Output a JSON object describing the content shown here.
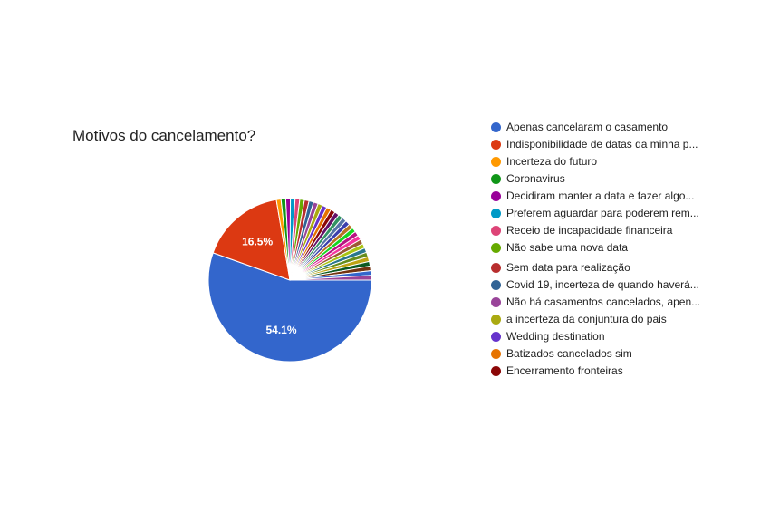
{
  "chart_data": {
    "type": "pie",
    "title": "Motivos do cancelamento?",
    "legend_position": "right",
    "slices": [
      {
        "label": "Apenas cancelaram o casamento",
        "value": 54.1,
        "color": "#3366cc",
        "show_label": true
      },
      {
        "label": "Indisponibilidade de datas da minha p...",
        "value": 16.5,
        "color": "#dc3912",
        "show_label": true
      },
      {
        "label": "Incerteza do futuro",
        "value": 0.9,
        "color": "#ff9900"
      },
      {
        "label": "Coronavirus",
        "value": 0.9,
        "color": "#109618"
      },
      {
        "label": "Decidiram manter a data e fazer algo...",
        "value": 0.9,
        "color": "#990099"
      },
      {
        "label": "Preferem aguardar para poderem rem...",
        "value": 0.9,
        "color": "#0099c6"
      },
      {
        "label": "Receio de incapacidade financeira",
        "value": 0.9,
        "color": "#dd4477"
      },
      {
        "label": "Não sabe uma nova data",
        "value": 0.9,
        "color": "#66aa00"
      },
      {
        "label": "Sem data para realização",
        "value": 0.9,
        "color": "#b82e2e"
      },
      {
        "label": "Covid 19, incerteza de quando haverá...",
        "value": 0.9,
        "color": "#316395"
      },
      {
        "label": "Não há casamentos cancelados, apen...",
        "value": 0.9,
        "color": "#994499"
      },
      {
        "label": "a incerteza da conjuntura do pais",
        "value": 0.9,
        "color": "#aaaa11"
      },
      {
        "label": "Wedding destination",
        "value": 0.9,
        "color": "#6633cc"
      },
      {
        "label": "Batizados cancelados sim",
        "value": 0.9,
        "color": "#e67300"
      },
      {
        "label": "Encerramento fronteiras",
        "value": 0.9,
        "color": "#8b0707"
      },
      {
        "label": "",
        "value": 0.9,
        "color": "#651067"
      },
      {
        "label": "",
        "value": 0.9,
        "color": "#329262"
      },
      {
        "label": "",
        "value": 0.9,
        "color": "#5574a6"
      },
      {
        "label": "",
        "value": 0.9,
        "color": "#3b3eac"
      },
      {
        "label": "",
        "value": 0.9,
        "color": "#b77322"
      },
      {
        "label": "",
        "value": 0.9,
        "color": "#16d620"
      },
      {
        "label": "",
        "value": 0.9,
        "color": "#b91383"
      },
      {
        "label": "",
        "value": 0.9,
        "color": "#f4359e"
      },
      {
        "label": "",
        "value": 0.9,
        "color": "#9c5935"
      },
      {
        "label": "",
        "value": 0.9,
        "color": "#a9c413"
      },
      {
        "label": "",
        "value": 0.9,
        "color": "#2a778d"
      },
      {
        "label": "",
        "value": 0.9,
        "color": "#668d1c"
      },
      {
        "label": "",
        "value": 0.9,
        "color": "#bea413"
      },
      {
        "label": "",
        "value": 0.9,
        "color": "#0c5922"
      },
      {
        "label": "",
        "value": 0.9,
        "color": "#743411"
      },
      {
        "label": "",
        "value": 0.9,
        "color": "#3366cc"
      },
      {
        "label": "",
        "value": 0.9,
        "color": "#994499"
      }
    ]
  }
}
